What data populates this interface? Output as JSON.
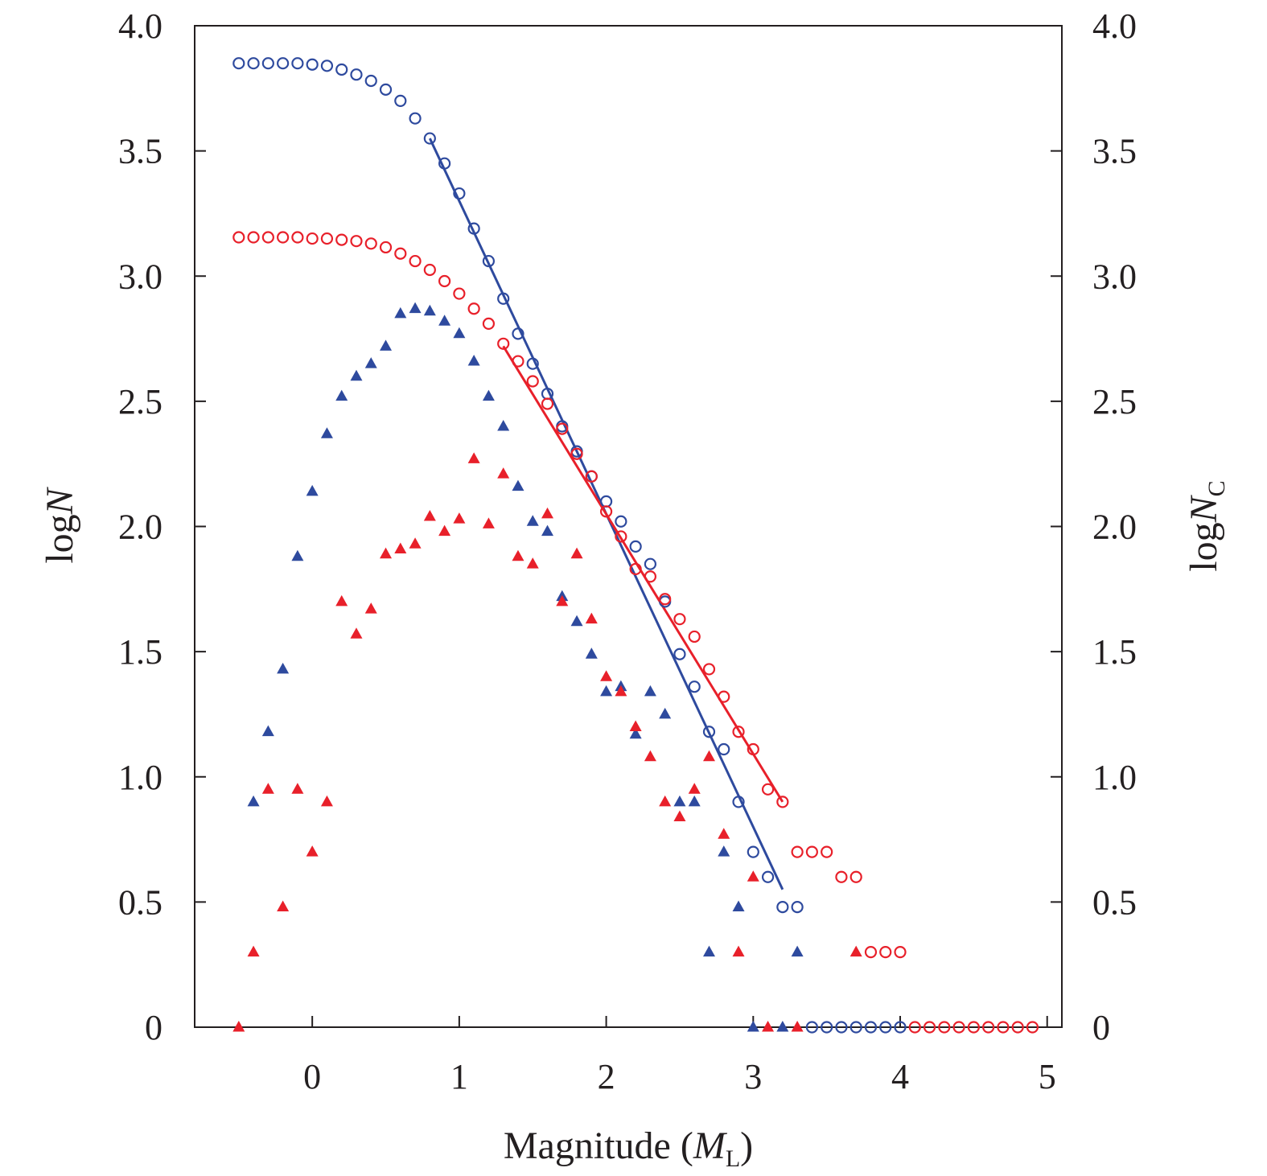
{
  "chart_data": {
    "type": "scatter",
    "xlabel": {
      "text": "Magnitude (",
      "italic": "M",
      "sub": "L",
      "tail": ")"
    },
    "ylabel_left": {
      "text": "log",
      "italic": "N"
    },
    "ylabel_right": {
      "text": "log",
      "italic": "N",
      "sub": "C"
    },
    "xlim": [
      -0.8,
      5.1
    ],
    "ylim": [
      0,
      4.0
    ],
    "x_ticks": [
      0,
      1,
      2,
      3,
      4,
      5
    ],
    "x_tick_labels": [
      "0",
      "1",
      "2",
      "3",
      "4",
      "5"
    ],
    "y_ticks": [
      0,
      0.5,
      1.0,
      1.5,
      2.0,
      2.5,
      3.0,
      3.5,
      4.0
    ],
    "y_tick_labels": [
      "0",
      "0.5",
      "1.0",
      "1.5",
      "2.0",
      "2.5",
      "3.0",
      "3.5",
      "4.0"
    ],
    "grid": false,
    "legend": "none",
    "colors": {
      "blue": "#2e4a9e",
      "red": "#e8202a",
      "axis": "#231f20"
    },
    "series": [
      {
        "marker": "open-circle",
        "color": "#2e4a9e",
        "x": [
          -0.5,
          -0.4,
          -0.3,
          -0.2,
          -0.1,
          0.0,
          0.1,
          0.2,
          0.3,
          0.4,
          0.5,
          0.6,
          0.7,
          0.8,
          0.9,
          1.0,
          1.1,
          1.2,
          1.3,
          1.4,
          1.5,
          1.6,
          1.7,
          1.8,
          1.9,
          2.0,
          2.1,
          2.2,
          2.3,
          2.4,
          2.5,
          2.6,
          2.7,
          2.8,
          2.9,
          3.0,
          3.1,
          3.2,
          3.3,
          3.4,
          3.5,
          3.6,
          3.7,
          3.8,
          3.9,
          4.0
        ],
        "y": [
          3.85,
          3.85,
          3.85,
          3.85,
          3.85,
          3.845,
          3.84,
          3.825,
          3.805,
          3.78,
          3.745,
          3.7,
          3.63,
          3.55,
          3.45,
          3.33,
          3.19,
          3.06,
          2.91,
          2.77,
          2.65,
          2.53,
          2.4,
          2.3,
          2.2,
          2.1,
          2.02,
          1.92,
          1.85,
          1.7,
          1.49,
          1.36,
          1.18,
          1.11,
          0.9,
          0.7,
          0.6,
          0.48,
          0.48,
          0,
          0,
          0,
          0,
          0,
          0,
          0
        ]
      },
      {
        "marker": "open-circle",
        "color": "#e8202a",
        "x": [
          -0.5,
          -0.4,
          -0.3,
          -0.2,
          -0.1,
          0.0,
          0.1,
          0.2,
          0.3,
          0.4,
          0.5,
          0.6,
          0.7,
          0.8,
          0.9,
          1.0,
          1.1,
          1.2,
          1.3,
          1.4,
          1.5,
          1.6,
          1.7,
          1.8,
          1.9,
          2.0,
          2.1,
          2.2,
          2.3,
          2.4,
          2.5,
          2.6,
          2.7,
          2.8,
          2.9,
          3.0,
          3.1,
          3.2,
          3.3,
          3.4,
          3.5,
          3.6,
          3.7,
          3.8,
          3.9,
          4.0,
          4.1,
          4.2,
          4.3,
          4.4,
          4.5,
          4.6,
          4.7,
          4.8,
          4.9
        ],
        "y": [
          3.155,
          3.155,
          3.155,
          3.155,
          3.155,
          3.15,
          3.15,
          3.145,
          3.14,
          3.13,
          3.115,
          3.09,
          3.06,
          3.025,
          2.98,
          2.93,
          2.87,
          2.81,
          2.73,
          2.66,
          2.58,
          2.49,
          2.39,
          2.29,
          2.2,
          2.06,
          1.96,
          1.83,
          1.8,
          1.71,
          1.63,
          1.56,
          1.43,
          1.32,
          1.18,
          1.11,
          0.95,
          0.9,
          0.7,
          0.7,
          0.7,
          0.6,
          0.6,
          0.3,
          0.3,
          0.3,
          0,
          0,
          0,
          0,
          0,
          0,
          0,
          0,
          0
        ]
      },
      {
        "marker": "filled-triangle",
        "color": "#2e4a9e",
        "x": [
          -0.4,
          -0.3,
          -0.2,
          -0.1,
          0.0,
          0.1,
          0.2,
          0.3,
          0.4,
          0.5,
          0.6,
          0.7,
          0.8,
          0.9,
          1.0,
          1.1,
          1.2,
          1.3,
          1.4,
          1.5,
          1.6,
          1.7,
          1.8,
          1.9,
          2.0,
          2.1,
          2.2,
          2.3,
          2.4,
          2.5,
          2.6,
          2.7,
          2.8,
          2.9,
          3.0,
          3.2,
          3.3
        ],
        "y": [
          0.9,
          1.18,
          1.43,
          1.88,
          2.14,
          2.37,
          2.52,
          2.6,
          2.65,
          2.72,
          2.85,
          2.87,
          2.86,
          2.82,
          2.77,
          2.66,
          2.52,
          2.4,
          2.16,
          2.02,
          1.98,
          1.72,
          1.62,
          1.49,
          1.34,
          1.36,
          1.17,
          1.34,
          1.25,
          0.9,
          0.9,
          0.3,
          0.7,
          0.48,
          0,
          0,
          0.3
        ]
      },
      {
        "marker": "filled-triangle",
        "color": "#e8202a",
        "x": [
          -0.5,
          -0.4,
          -0.3,
          -0.2,
          -0.1,
          0.0,
          0.1,
          0.2,
          0.3,
          0.4,
          0.5,
          0.6,
          0.7,
          0.8,
          0.9,
          1.0,
          1.1,
          1.2,
          1.3,
          1.4,
          1.5,
          1.6,
          1.7,
          1.8,
          1.9,
          2.0,
          2.1,
          2.2,
          2.3,
          2.4,
          2.5,
          2.6,
          2.7,
          2.8,
          2.9,
          3.0,
          3.1,
          3.3,
          3.7
        ],
        "y": [
          0,
          0.3,
          0.95,
          0.48,
          0.95,
          0.7,
          0.9,
          1.7,
          1.57,
          1.67,
          1.89,
          1.91,
          1.93,
          2.04,
          1.98,
          2.03,
          2.27,
          2.01,
          2.21,
          1.88,
          1.85,
          2.05,
          1.7,
          1.89,
          1.63,
          1.4,
          1.34,
          1.2,
          1.08,
          0.9,
          0.84,
          0.95,
          1.08,
          0.77,
          0.3,
          0.6,
          0,
          0,
          0.3
        ]
      }
    ],
    "fit_lines": [
      {
        "color": "#2e4a9e",
        "x": [
          0.8,
          3.2
        ],
        "y": [
          3.55,
          0.55
        ]
      },
      {
        "color": "#e8202a",
        "x": [
          1.3,
          3.2
        ],
        "y": [
          2.72,
          0.9
        ]
      }
    ]
  }
}
